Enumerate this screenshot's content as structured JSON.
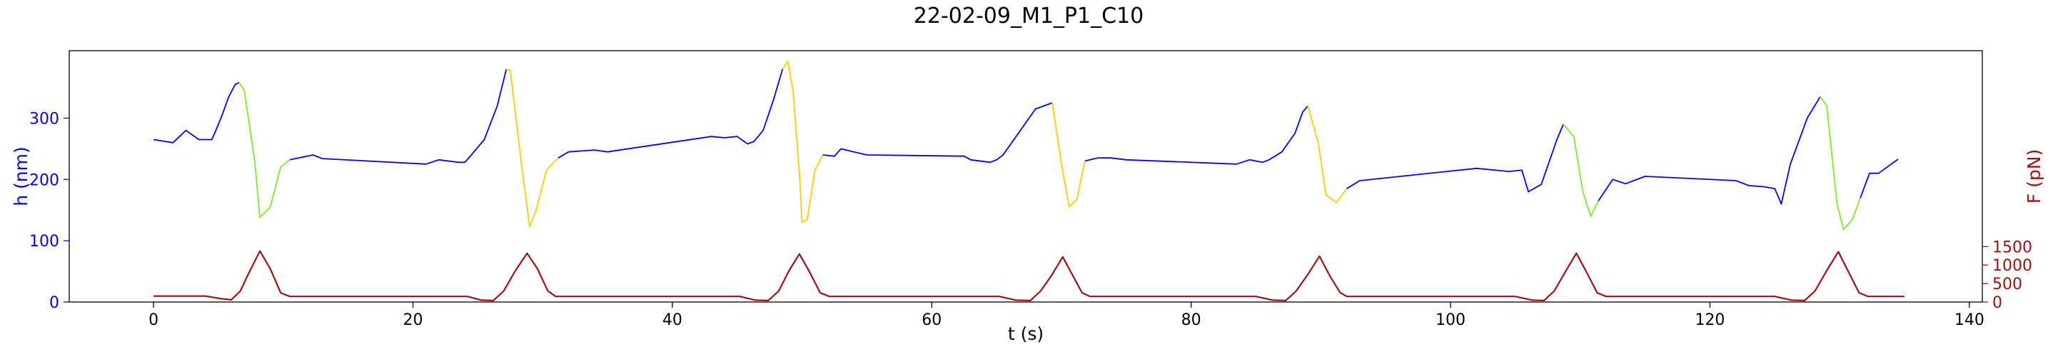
{
  "chart_data": {
    "type": "line",
    "title": "22-02-09_M1_P1_C10",
    "xlabel": "t (s)",
    "ylabel_left": "h (nm)",
    "ylabel_right": "F (pN)",
    "xlim": [
      -6.5,
      141
    ],
    "ylim_left": [
      0,
      410
    ],
    "ylim_right": [
      0,
      6800
    ],
    "xticks": [
      0,
      20,
      40,
      60,
      80,
      100,
      120,
      140
    ],
    "yticks_left": [
      0,
      100,
      200,
      300
    ],
    "yticks_right": [
      0,
      500,
      1000,
      1500
    ],
    "grid": false,
    "colors": {
      "height": "#0000ff",
      "force": "#a01010",
      "left_axis": "#0000ff",
      "right_axis": "#a01010",
      "segment_green": "#7ee82a",
      "segment_yellow": "#ffcc00"
    },
    "series": [
      {
        "key": "height",
        "axis": "left",
        "x": [
          0,
          1.5,
          2.5,
          3.5,
          4.5,
          5.2,
          5.8,
          6.3,
          6.6,
          7.0,
          7.8,
          8.2,
          9.0,
          9.8,
          10.5,
          12.3,
          13.0,
          21.0,
          22.0,
          23.5,
          24.0,
          24.5,
          25.5,
          26.5,
          27.2,
          27.5,
          28.4,
          29.0,
          29.5,
          30.3,
          31.2,
          32.0,
          34.0,
          35.0,
          43.0,
          44.0,
          45.0,
          45.8,
          46.3,
          47.0,
          47.8,
          48.5,
          48.9,
          49.3,
          49.8,
          50.0,
          50.4,
          51.0,
          51.6,
          52.5,
          53.0,
          54.0,
          55.0,
          62.5,
          63.0,
          64.5,
          65.0,
          65.5,
          66.5,
          68.0,
          69.3,
          70.0,
          70.6,
          71.2,
          71.8,
          72.8,
          73.8,
          75.0,
          83.5,
          84.5,
          85.5,
          86.0,
          87.0,
          88.0,
          88.6,
          89.0,
          89.8,
          90.4,
          91.2,
          92.0,
          93.0,
          102.0,
          103.5,
          104.5,
          105.5,
          106.0,
          107.0,
          108.2,
          108.7,
          109.5,
          110.2,
          110.8,
          111.4,
          112.5,
          113.5,
          115.0,
          122.0,
          123.0,
          124.2,
          125.0,
          125.5,
          126.2,
          127.5,
          128.5,
          129.0,
          129.8,
          130.3,
          131.0,
          131.6,
          132.3,
          133.0,
          134.5
        ],
        "y": [
          265,
          260,
          280,
          265,
          265,
          300,
          335,
          355,
          358,
          345,
          230,
          138,
          155,
          220,
          232,
          240,
          234,
          225,
          232,
          228,
          228,
          240,
          265,
          320,
          380,
          378,
          220,
          123,
          150,
          215,
          235,
          245,
          248,
          245,
          270,
          268,
          270,
          258,
          262,
          280,
          330,
          380,
          393,
          345,
          210,
          130,
          135,
          215,
          240,
          238,
          250,
          245,
          240,
          238,
          232,
          228,
          232,
          240,
          270,
          315,
          325,
          225,
          155,
          168,
          230,
          235,
          235,
          232,
          225,
          232,
          228,
          232,
          245,
          275,
          310,
          320,
          260,
          175,
          162,
          185,
          198,
          218,
          215,
          213,
          215,
          180,
          192,
          265,
          290,
          270,
          180,
          140,
          165,
          200,
          193,
          205,
          198,
          190,
          188,
          185,
          160,
          225,
          300,
          335,
          320,
          160,
          118,
          135,
          170,
          210,
          210,
          233
        ],
        "segments": [
          {
            "from": 6.6,
            "to": 10.3,
            "color": "segment_green"
          },
          {
            "from": 27.2,
            "to": 30.8,
            "color": "segment_yellow"
          },
          {
            "from": 48.5,
            "to": 52.0,
            "color": "segment_yellow"
          },
          {
            "from": 69.3,
            "to": 72.0,
            "color": "segment_yellow"
          },
          {
            "from": 89.0,
            "to": 92.0,
            "color": "segment_yellow"
          },
          {
            "from": 108.7,
            "to": 111.6,
            "color": "segment_green"
          },
          {
            "from": 128.5,
            "to": 131.8,
            "color": "segment_green"
          }
        ]
      },
      {
        "key": "force",
        "axis": "right",
        "x": [
          0,
          4.0,
          5.2,
          6.0,
          6.7,
          7.3,
          8.2,
          9.0,
          9.8,
          10.5,
          11.3,
          24.2,
          25.3,
          26.2,
          27.0,
          27.9,
          28.8,
          29.6,
          30.4,
          31.0,
          45.2,
          46.4,
          47.4,
          48.2,
          49.0,
          49.8,
          50.6,
          51.4,
          52.1,
          65.2,
          66.5,
          67.6,
          68.4,
          69.2,
          70.1,
          70.9,
          71.6,
          72.2,
          85.0,
          86.3,
          87.3,
          88.1,
          89.0,
          89.9,
          90.7,
          91.5,
          92.0,
          105.0,
          106.3,
          107.2,
          108.0,
          108.9,
          109.7,
          110.5,
          111.3,
          112.0,
          125.0,
          126.3,
          127.3,
          128.1,
          129.0,
          129.9,
          130.7,
          131.5,
          132.2,
          135.0
        ],
        "y": [
          160,
          160,
          90,
          60,
          300,
          750,
          1380,
          900,
          250,
          150,
          150,
          150,
          50,
          40,
          300,
          850,
          1320,
          900,
          300,
          150,
          150,
          50,
          40,
          300,
          850,
          1300,
          800,
          250,
          150,
          150,
          50,
          40,
          300,
          700,
          1220,
          700,
          250,
          150,
          150,
          50,
          40,
          300,
          750,
          1240,
          700,
          250,
          150,
          150,
          50,
          40,
          300,
          850,
          1320,
          800,
          250,
          150,
          150,
          50,
          40,
          300,
          850,
          1360,
          800,
          250,
          150,
          150
        ]
      }
    ]
  }
}
